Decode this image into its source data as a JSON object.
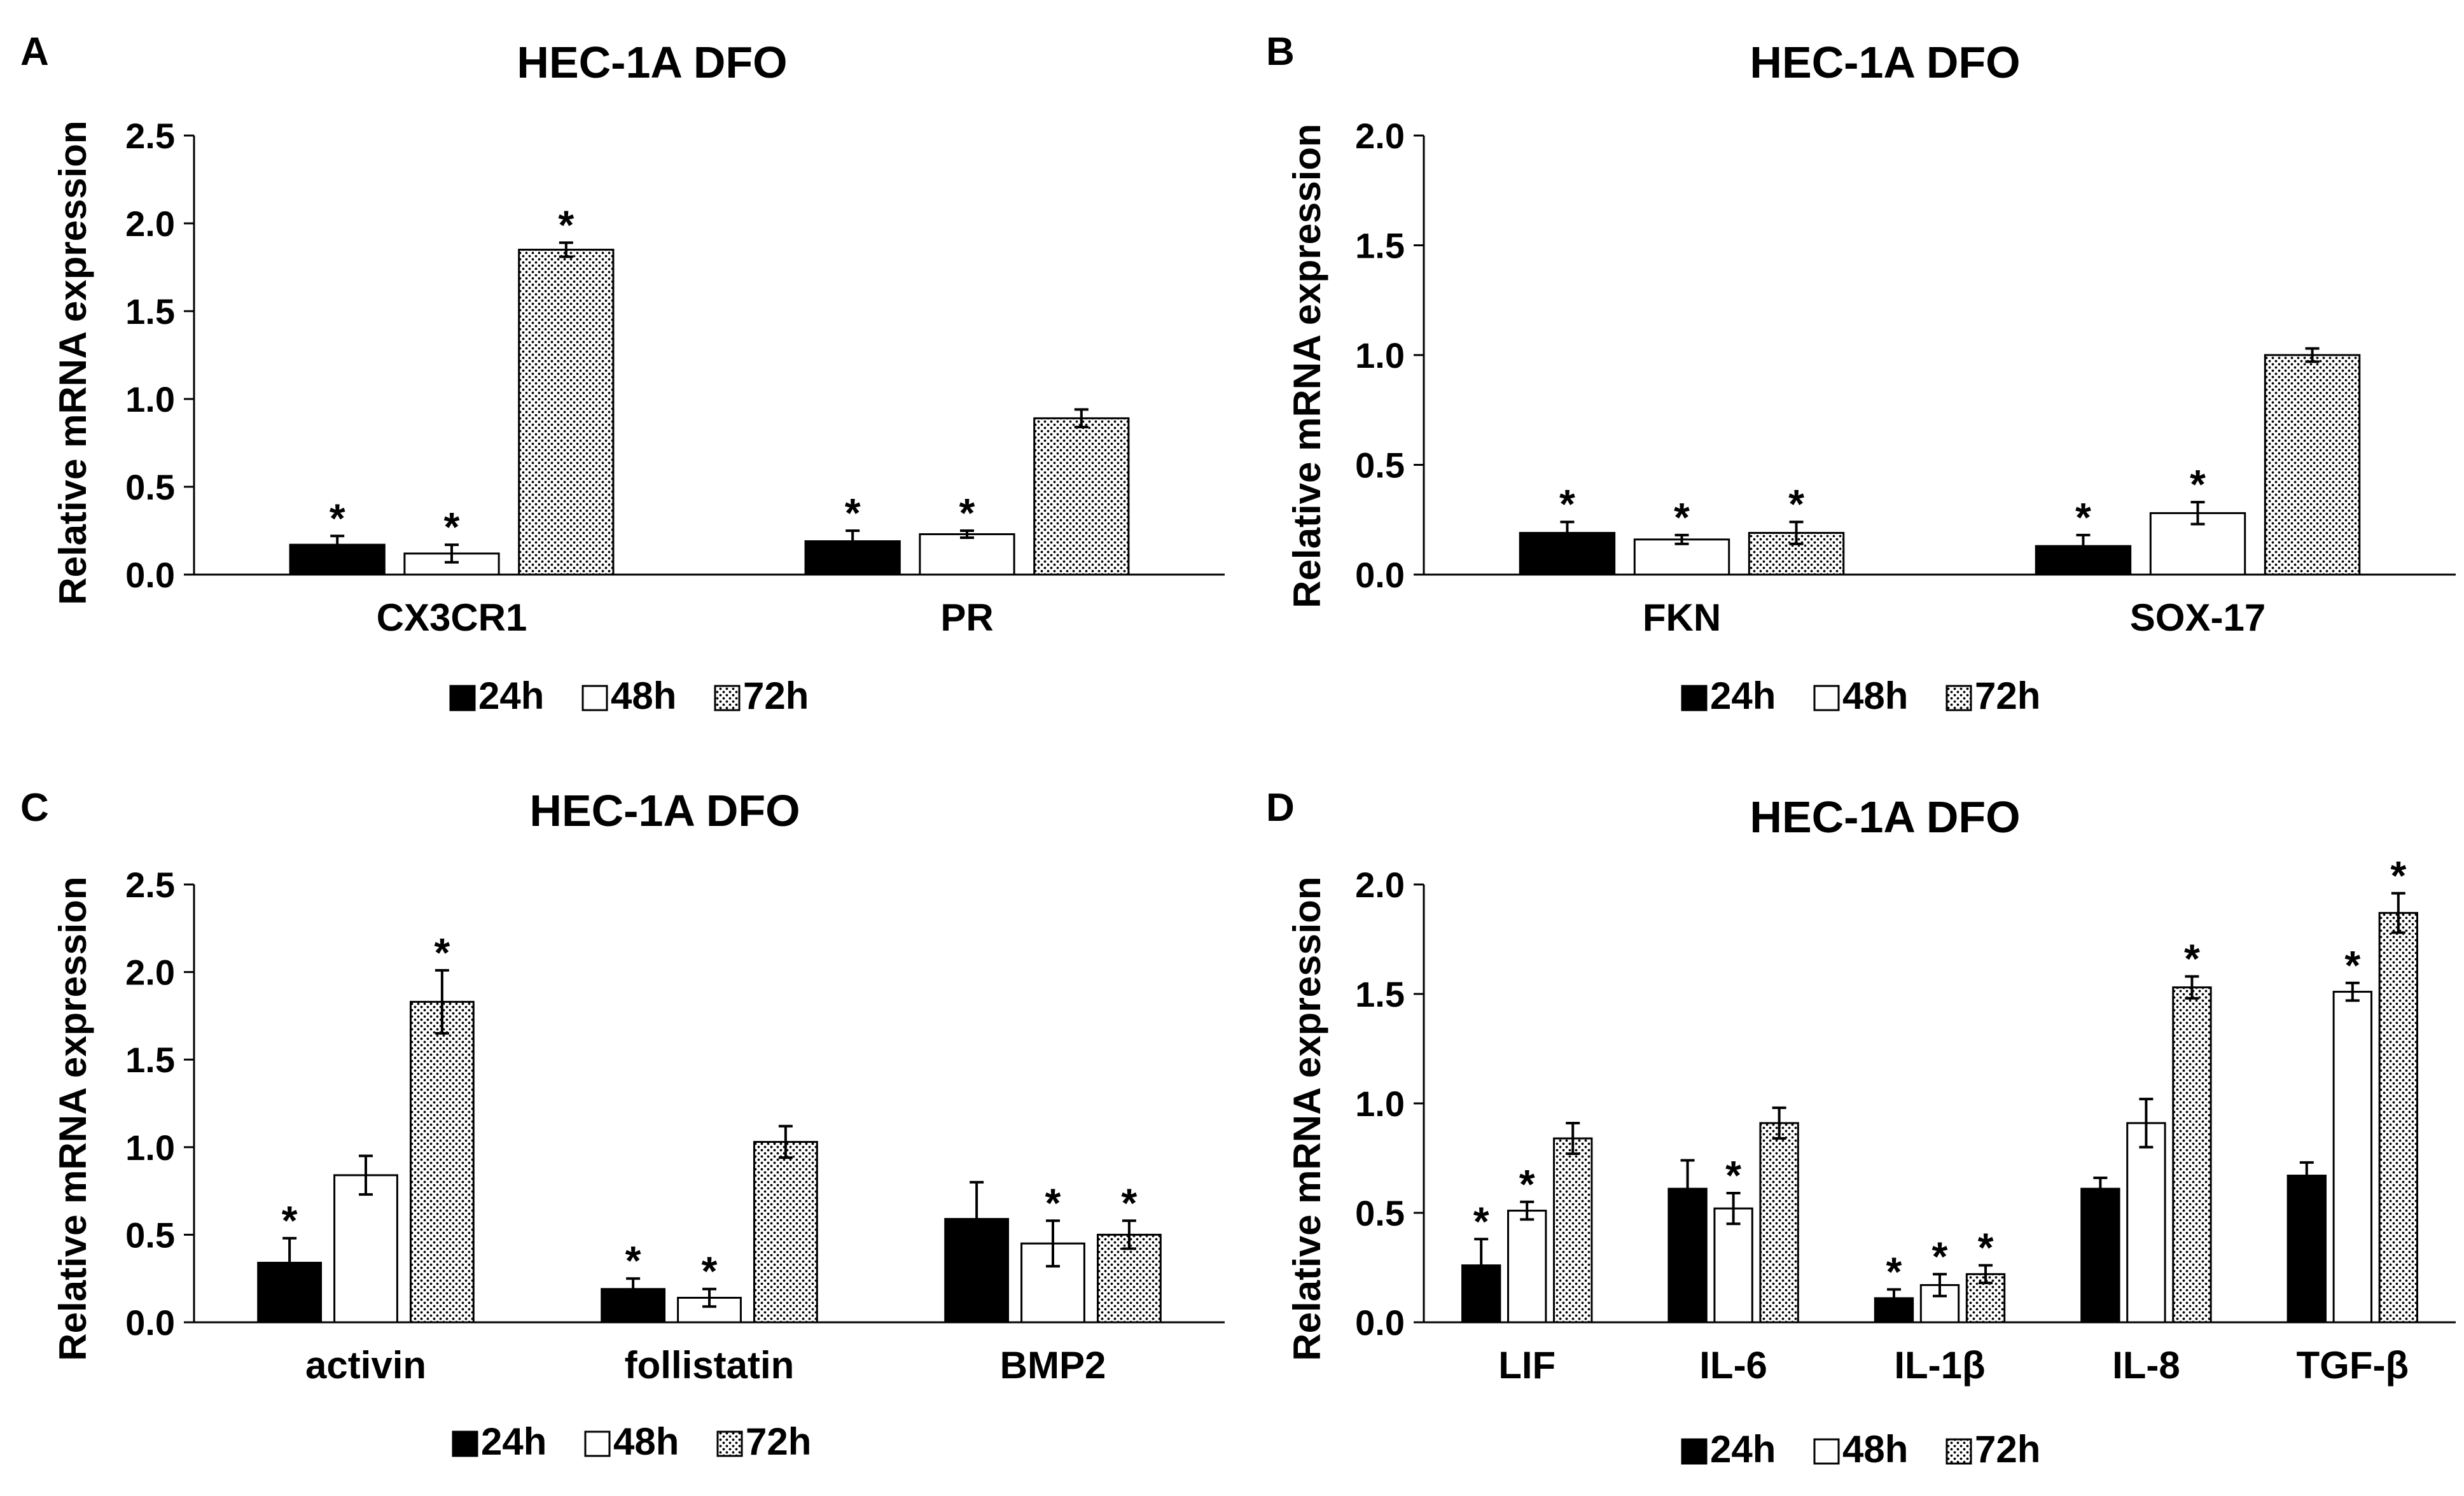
{
  "chart_data": [
    {
      "panel_label": "A",
      "type": "bar",
      "title": "HEC-1A DFO",
      "ylabel": "Relative mRNA expression",
      "ylim": [
        0,
        2.5
      ],
      "yticks": [
        "0.0",
        "0.5",
        "1.0",
        "1.5",
        "2.0",
        "2.5"
      ],
      "categories": [
        "CX3CR1",
        "PR"
      ],
      "series": [
        {
          "name": "24h",
          "values": [
            0.17,
            0.19
          ],
          "errors": [
            0.05,
            0.06
          ],
          "significant": [
            true,
            true
          ]
        },
        {
          "name": "48h",
          "values": [
            0.12,
            0.23
          ],
          "errors": [
            0.05,
            0.02
          ],
          "significant": [
            true,
            true
          ]
        },
        {
          "name": "72h",
          "values": [
            1.85,
            0.89
          ],
          "errors": [
            0.04,
            0.05
          ],
          "significant": [
            true,
            false
          ]
        }
      ],
      "legend_position": "bottom"
    },
    {
      "panel_label": "B",
      "type": "bar",
      "title": "HEC-1A DFO",
      "ylabel": "Relative mRNA expression",
      "ylim": [
        0,
        2.0
      ],
      "yticks": [
        "0.0",
        "0.5",
        "1.0",
        "1.5",
        "2.0"
      ],
      "categories": [
        "FKN",
        "SOX-17"
      ],
      "series": [
        {
          "name": "24h",
          "values": [
            0.19,
            0.13
          ],
          "errors": [
            0.05,
            0.05
          ],
          "significant": [
            true,
            true
          ]
        },
        {
          "name": "48h",
          "values": [
            0.16,
            0.28
          ],
          "errors": [
            0.02,
            0.05
          ],
          "significant": [
            true,
            true
          ]
        },
        {
          "name": "72h",
          "values": [
            0.19,
            1.0
          ],
          "errors": [
            0.05,
            0.03
          ],
          "significant": [
            true,
            false
          ]
        }
      ],
      "legend_position": "bottom"
    },
    {
      "panel_label": "C",
      "type": "bar",
      "title": "HEC-1A DFO",
      "ylabel": "Relative mRNA expression",
      "ylim": [
        0,
        2.5
      ],
      "yticks": [
        "0.0",
        "0.5",
        "1.0",
        "1.5",
        "2.0",
        "2.5"
      ],
      "categories": [
        "activin",
        "follistatin",
        "BMP2"
      ],
      "series": [
        {
          "name": "24h",
          "values": [
            0.34,
            0.19,
            0.59
          ],
          "errors": [
            0.14,
            0.06,
            0.21
          ],
          "significant": [
            true,
            true,
            false
          ]
        },
        {
          "name": "48h",
          "values": [
            0.84,
            0.14,
            0.45
          ],
          "errors": [
            0.11,
            0.05,
            0.13
          ],
          "significant": [
            false,
            true,
            true
          ]
        },
        {
          "name": "72h",
          "values": [
            1.83,
            1.03,
            0.5
          ],
          "errors": [
            0.18,
            0.09,
            0.08
          ],
          "significant": [
            true,
            false,
            true
          ]
        }
      ],
      "legend_position": "bottom"
    },
    {
      "panel_label": "D",
      "type": "bar",
      "title": "HEC-1A DFO",
      "ylabel": "Relative mRNA expression",
      "ylim": [
        0,
        2.0
      ],
      "yticks": [
        "0.0",
        "0.5",
        "1.0",
        "1.5",
        "2.0"
      ],
      "categories": [
        "LIF",
        "IL-6",
        "IL-1β",
        "IL-8",
        "TGF-β"
      ],
      "series": [
        {
          "name": "24h",
          "values": [
            0.26,
            0.61,
            0.11,
            0.61,
            0.67
          ],
          "errors": [
            0.12,
            0.13,
            0.04,
            0.05,
            0.06
          ],
          "significant": [
            true,
            false,
            true,
            false,
            false
          ]
        },
        {
          "name": "48h",
          "values": [
            0.51,
            0.52,
            0.17,
            0.91,
            1.51
          ],
          "errors": [
            0.04,
            0.07,
            0.05,
            0.11,
            0.04
          ],
          "significant": [
            true,
            true,
            true,
            false,
            true
          ]
        },
        {
          "name": "72h",
          "values": [
            0.84,
            0.91,
            0.22,
            1.53,
            1.87
          ],
          "errors": [
            0.07,
            0.07,
            0.04,
            0.05,
            0.09
          ],
          "significant": [
            false,
            false,
            true,
            true,
            true
          ]
        }
      ],
      "legend_position": "bottom"
    }
  ],
  "legend_labels": [
    "24h",
    "48h",
    "72h"
  ],
  "significance_marker": "*",
  "colors": {
    "series_24h": "#000000",
    "series_48h": "#ffffff",
    "series_72h": "dotted-pattern",
    "axis": "#000000"
  }
}
